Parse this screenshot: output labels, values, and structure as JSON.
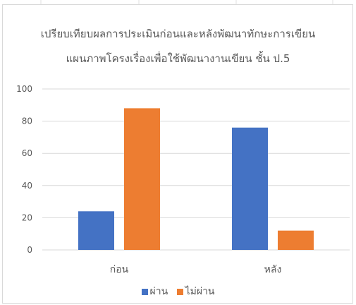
{
  "chart_data": {
    "type": "bar",
    "title_lines": [
      "เปรียบเทียบผลการประเมินก่อนและหลังพัฒนาทักษะการเขียน",
      "แผนภาพโครงเรื่องเพื่อใช้พัฒนางานเขียน ชั้น ป.5"
    ],
    "categories": [
      "ก่อน",
      "หลัง"
    ],
    "series": [
      {
        "name": "ผ่าน",
        "values": [
          24,
          76
        ],
        "color": "#4472c4"
      },
      {
        "name": "ไม่ผ่าน",
        "values": [
          88,
          12
        ],
        "color": "#ed7d31"
      }
    ],
    "ylim": [
      0,
      100
    ],
    "yticks": [
      0,
      20,
      40,
      60,
      80,
      100
    ],
    "grid": true,
    "legend_position": "bottom",
    "xlabel": "",
    "ylabel": ""
  }
}
